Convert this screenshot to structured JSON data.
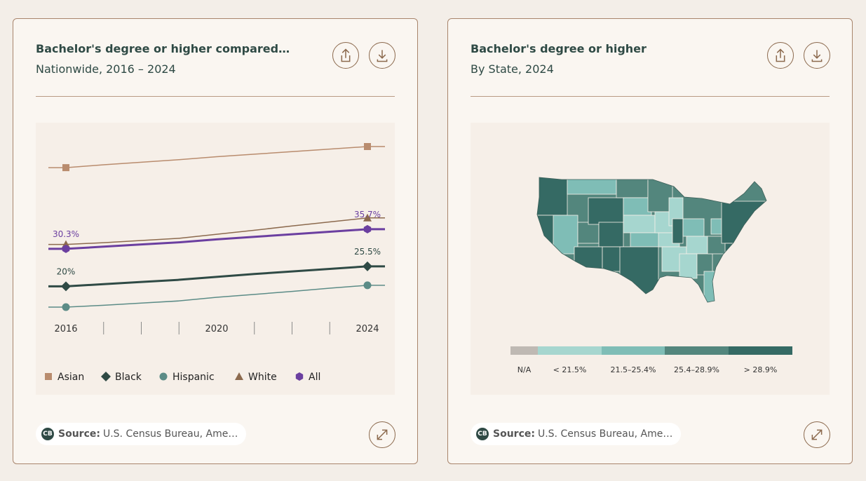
{
  "cards": [
    {
      "title": "Bachelor's degree or higher compared…",
      "subtitle": "Nationwide, 2016 – 2024",
      "source_logo": "CB",
      "source_label": "Source:",
      "source_text": "U.S. Census Bureau, Ame…",
      "chart_data": {
        "type": "line",
        "categories": [
          "2016",
          null,
          null,
          null,
          "2020",
          null,
          null,
          null,
          "2024"
        ],
        "series": [
          {
            "name": "Asian",
            "color": "#b98c6e",
            "marker": "square",
            "width": 1.5,
            "values": [
              52.6,
              53.4,
              54.1,
              54.8,
              55.6,
              56.3,
              57.0,
              57.7,
              58.4
            ]
          },
          {
            "name": "Black",
            "color": "#2f4a45",
            "marker": "diamond",
            "width": 3,
            "values": [
              20,
              20.6,
              21.2,
              21.8,
              22.6,
              23.4,
              24.1,
              24.8,
              25.5
            ],
            "value_labels": [
              "20%",
              null,
              null,
              null,
              null,
              null,
              null,
              null,
              "25.5%"
            ]
          },
          {
            "name": "Hispanic",
            "color": "#5c8c87",
            "marker": "circle",
            "width": 1.5,
            "values": [
              14.3,
              14.8,
              15.4,
              16.0,
              17.0,
              17.8,
              18.6,
              19.5,
              20.3
            ]
          },
          {
            "name": "White",
            "color": "#8c6a4e",
            "marker": "triangle",
            "width": 1.5,
            "values": [
              31.5,
              32.0,
              32.6,
              33.2,
              34.3,
              35.4,
              36.6,
              37.7,
              38.8
            ]
          },
          {
            "name": "All",
            "color": "#6b3fa0",
            "marker": "hexagon",
            "width": 3,
            "values": [
              30.3,
              30.9,
              31.5,
              32.1,
              32.9,
              33.6,
              34.3,
              35.0,
              35.7
            ],
            "value_labels": [
              "30.3%",
              null,
              null,
              null,
              null,
              null,
              null,
              null,
              "35.7%"
            ]
          }
        ]
      }
    },
    {
      "title": "Bachelor's degree or higher",
      "subtitle": "By State, 2024",
      "source_logo": "CB",
      "source_label": "Source:",
      "source_text": "U.S. Census Bureau, Ame…",
      "legend": [
        {
          "label": "N/A",
          "color": "#bfb9b3"
        },
        {
          "label": "< 21.5%",
          "color": "#a6d6cf"
        },
        {
          "label": "21.5–25.4%",
          "color": "#7fbdb6"
        },
        {
          "label": "25.4–28.9%",
          "color": "#53867d"
        },
        {
          "label": "> 28.9%",
          "color": "#356a64"
        }
      ]
    }
  ]
}
